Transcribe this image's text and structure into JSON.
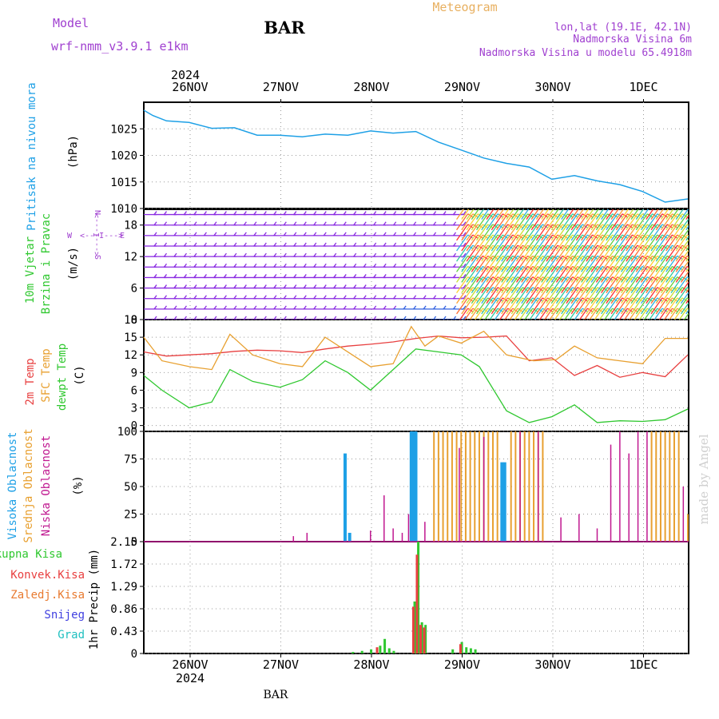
{
  "header": {
    "model_label": "Model",
    "model_name": "wrf-nmm_v3.9.1 e1km",
    "title": "BAR",
    "subtitle": "Meteogram",
    "location": "lon,lat (19.1E, 42.1N)",
    "elevation": "Nadmorska Visina 6m",
    "model_elevation": "Nadmorska Visina u modelu 65.4918m",
    "footer_station": "BAR",
    "credit": "made by Angel"
  },
  "colors": {
    "pressure": "#1ea0e6",
    "temp2m": "#e84040",
    "sfc_temp": "#e8a030",
    "dewpoint": "#30c830",
    "cloud_high": "#1ea0e6",
    "cloud_mid": "#e8a030",
    "cloud_low": "#c01890",
    "precip_total": "#30c830",
    "precip_conv": "#e84040",
    "precip_frz": "#e87a30",
    "precip_snow": "#4040e0",
    "precip_grad": "#20c0c0",
    "wind_light": "#8a2be2",
    "purple_text": "#a040d0"
  },
  "chart_data": [
    {
      "type": "line",
      "title": "",
      "ylabel": [
        "Pritisak na nivou mora",
        "(hPa)"
      ],
      "x_dates": [
        "26NOV",
        "27NOV",
        "28NOV",
        "29NOV",
        "30NOV",
        "1DEC"
      ],
      "year": "2024",
      "ylim": [
        1010,
        1030
      ],
      "yticks": [
        1010,
        1015,
        1020,
        1025
      ],
      "grid": true,
      "series": [
        {
          "x": [
            0,
            0.1,
            0.25,
            0.5,
            0.75,
            1.0,
            1.25,
            1.5,
            1.75,
            2.0,
            2.25,
            2.5,
            2.75,
            3.0,
            3.25,
            3.5,
            3.75,
            4.0,
            4.25,
            4.5,
            4.75,
            5.0,
            5.25,
            5.5,
            5.75,
            6.0
          ],
          "values": [
            1028.5,
            1027.5,
            1026.5,
            1026.2,
            1025.1,
            1025.2,
            1023.8,
            1023.8,
            1023.5,
            1024.0,
            1023.8,
            1024.6,
            1024.2,
            1024.5,
            1022.5,
            1021.0,
            1019.5,
            1018.5,
            1017.8,
            1015.5,
            1016.2,
            1015.2,
            1014.5,
            1013.2,
            1011.2,
            1011.8
          ]
        }
      ]
    },
    {
      "type": "scatter",
      "title": "",
      "ylabel": [
        "10m Vjetar",
        "Brzina i Pravac",
        "(m/s)"
      ],
      "compass_labels": [
        "N",
        "W",
        "E",
        "S",
        "<---I--->"
      ],
      "ylim": [
        0,
        21
      ],
      "yticks": [
        0,
        6,
        12,
        18
      ],
      "grid": true,
      "wind_rows_m_s": [
        0,
        2,
        4,
        6,
        8,
        10,
        12,
        14,
        16,
        18,
        20
      ],
      "regime_change_day": 3.45
    },
    {
      "type": "line",
      "title": "",
      "ylabel": [
        "2m Temp",
        "SFC Temp",
        "dewpt Temp",
        "(C)"
      ],
      "ylim": [
        -1,
        18
      ],
      "yticks": [
        0,
        3,
        6,
        9,
        12,
        15,
        18
      ],
      "grid": true,
      "series": [
        {
          "name": "2m Temp",
          "x": [
            0,
            0.25,
            0.5,
            0.75,
            1.0,
            1.25,
            1.5,
            1.75,
            2.0,
            2.25,
            2.5,
            2.75,
            3.0,
            3.25,
            3.5,
            3.75,
            4.0,
            4.25,
            4.5,
            4.75,
            5.0,
            5.25,
            5.5,
            5.75,
            6.0
          ],
          "values": [
            12.5,
            11.8,
            12.0,
            12.2,
            12.6,
            12.8,
            12.7,
            12.4,
            13.0,
            13.5,
            13.8,
            14.2,
            14.8,
            15.2,
            14.9,
            15.0,
            15.2,
            11.0,
            11.5,
            8.5,
            10.2,
            8.2,
            9.0,
            8.3,
            12.0
          ]
        },
        {
          "name": "SFC Temp",
          "x": [
            0,
            0.2,
            0.5,
            0.75,
            0.95,
            1.2,
            1.5,
            1.75,
            2.0,
            2.3,
            2.5,
            2.75,
            2.95,
            3.1,
            3.25,
            3.5,
            3.75,
            4.0,
            4.3,
            4.55,
            4.75,
            5.0,
            5.25,
            5.5,
            5.75,
            6.0
          ],
          "values": [
            15.0,
            11.0,
            10.0,
            9.5,
            15.5,
            12.0,
            10.5,
            10.0,
            15.0,
            12.0,
            10.0,
            10.5,
            16.8,
            13.5,
            15.2,
            14.0,
            16.0,
            12.0,
            11.0,
            11.2,
            13.5,
            11.5,
            11.0,
            10.5,
            14.8,
            14.8
          ]
        },
        {
          "name": "dewpt Temp",
          "x": [
            0,
            0.2,
            0.5,
            0.75,
            0.95,
            1.2,
            1.5,
            1.75,
            2.0,
            2.25,
            2.5,
            2.75,
            3.0,
            3.25,
            3.5,
            3.7,
            4.0,
            4.25,
            4.5,
            4.75,
            5.0,
            5.25,
            5.5,
            5.75,
            6.0
          ],
          "values": [
            8.5,
            6.0,
            3.0,
            4.0,
            9.5,
            7.5,
            6.5,
            7.8,
            11.0,
            9.0,
            6.0,
            9.5,
            13.0,
            12.5,
            12.0,
            10.0,
            2.5,
            0.5,
            1.5,
            3.5,
            0.5,
            0.8,
            0.7,
            1.0,
            2.8
          ]
        }
      ]
    },
    {
      "type": "bar",
      "title": "",
      "ylabel": [
        "Visoka Oblacnost",
        "Srednja Oblacnost",
        "Niska Oblacnost",
        "(%)"
      ],
      "ylim": [
        0,
        100
      ],
      "yticks": [
        0,
        25,
        50,
        75,
        100
      ],
      "grid": true,
      "series": [
        {
          "name": "Visoka Oblacnost",
          "x": [
            2.22,
            2.27,
            2.95,
            2.98,
            3.0,
            3.95,
            3.98
          ],
          "values": [
            80,
            8,
            100,
            100,
            100,
            72,
            72
          ]
        },
        {
          "name": "Srednja Oblacnost",
          "x": [
            3.2,
            3.25,
            3.3,
            3.35,
            3.4,
            3.45,
            3.5,
            3.55,
            3.6,
            3.65,
            3.7,
            3.75,
            3.8,
            3.85,
            3.9,
            4.05,
            4.1,
            4.15,
            4.2,
            4.25,
            4.3,
            4.35,
            4.4,
            5.6,
            5.65,
            5.7,
            5.75,
            5.8,
            5.85,
            5.9,
            6.0
          ],
          "values": [
            100,
            100,
            100,
            100,
            100,
            100,
            100,
            100,
            100,
            100,
            100,
            100,
            100,
            100,
            100,
            100,
            100,
            100,
            100,
            100,
            100,
            100,
            100,
            100,
            100,
            100,
            100,
            100,
            100,
            100,
            25
          ]
        },
        {
          "name": "Niska Oblacnost",
          "x": [
            1.65,
            1.8,
            2.5,
            2.65,
            2.75,
            2.85,
            2.92,
            3.1,
            3.48,
            3.75,
            4.15,
            4.35,
            4.6,
            4.8,
            5.0,
            5.15,
            5.25,
            5.35,
            5.45,
            5.55,
            5.95
          ],
          "values": [
            5,
            8,
            10,
            42,
            12,
            8,
            25,
            18,
            85,
            95,
            100,
            100,
            22,
            25,
            12,
            88,
            100,
            80,
            100,
            100,
            50
          ]
        }
      ]
    },
    {
      "type": "bar",
      "title": "",
      "ylabel": [
        "1hr Precip (mm)"
      ],
      "legend": [
        "Ukupna Kisa",
        "Konvek.Kisa",
        "Zaledj.Kisa",
        "Snijeg",
        "Grad"
      ],
      "ylim": [
        0,
        2.15
      ],
      "yticks": [
        0,
        0.43,
        0.86,
        1.29,
        1.72,
        2.15
      ],
      "grid": true,
      "series": [
        {
          "name": "Ukupna Kisa",
          "x": [
            2.3,
            2.4,
            2.5,
            2.6,
            2.65,
            2.7,
            2.75,
            2.98,
            3.02,
            3.06,
            3.1,
            3.4,
            3.5,
            3.55,
            3.6,
            3.65
          ],
          "values": [
            0.03,
            0.05,
            0.08,
            0.15,
            0.28,
            0.1,
            0.05,
            1.0,
            2.15,
            0.6,
            0.55,
            0.08,
            0.22,
            0.12,
            0.1,
            0.08
          ]
        },
        {
          "name": "Konvek.Kisa",
          "x": [
            2.58,
            2.98,
            3.02,
            3.06,
            3.1,
            3.5
          ],
          "values": [
            0.12,
            0.9,
            1.9,
            0.55,
            0.5,
            0.18
          ]
        }
      ]
    }
  ],
  "axis": {
    "year_label": "2024",
    "days": [
      "26NOV",
      "27NOV",
      "28NOV",
      "29NOV",
      "30NOV",
      "1DEC"
    ]
  }
}
